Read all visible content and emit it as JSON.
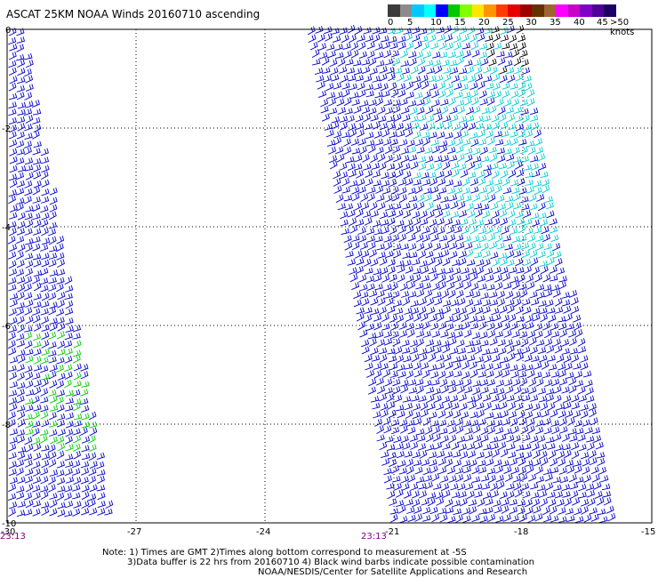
{
  "title": "ASCAT 25KM NOAA Winds 20160710 ascending",
  "color_scale": {
    "labels": [
      "0",
      "5",
      "10",
      "15",
      "20",
      "25",
      "30",
      "35",
      "40",
      "45",
      ">50 knots"
    ],
    "colors": [
      "#3c3c3c",
      "#8c8c8c",
      "#00c8ff",
      "#00ffff",
      "#0000ff",
      "#00c800",
      "#80ff00",
      "#ffe600",
      "#ff9600",
      "#ff3c00",
      "#e60000",
      "#a00000",
      "#643200",
      "#a06432",
      "#ff00ff",
      "#c800c8",
      "#8000c8",
      "#500096",
      "#1e0064"
    ]
  },
  "lat_labels": [
    "0",
    "-2",
    "-4",
    "-6",
    "-8",
    "-10"
  ],
  "lon_labels": [
    "-30",
    "-27",
    "-24",
    "-21",
    "-18",
    "-15"
  ],
  "time_labels": [
    "23:13",
    "23:13"
  ],
  "notes": [
    "Note: 1) Times are GMT 2)Times along bottom correspond to measurement at -5S",
    "3)Data buffer is 22 hrs from 20160710 4) Black wind barbs indicate possible contamination",
    "NOAA/NESDIS/Center for Satellite Applications and Research"
  ],
  "swaths": [
    {
      "name": "left-swath",
      "dominant_color": "#0000cc",
      "secondary_color": "#00cc00"
    },
    {
      "name": "right-swath",
      "dominant_color": "#0000cc",
      "secondary_color": "#00cccc",
      "contamination_color": "#000000"
    }
  ]
}
